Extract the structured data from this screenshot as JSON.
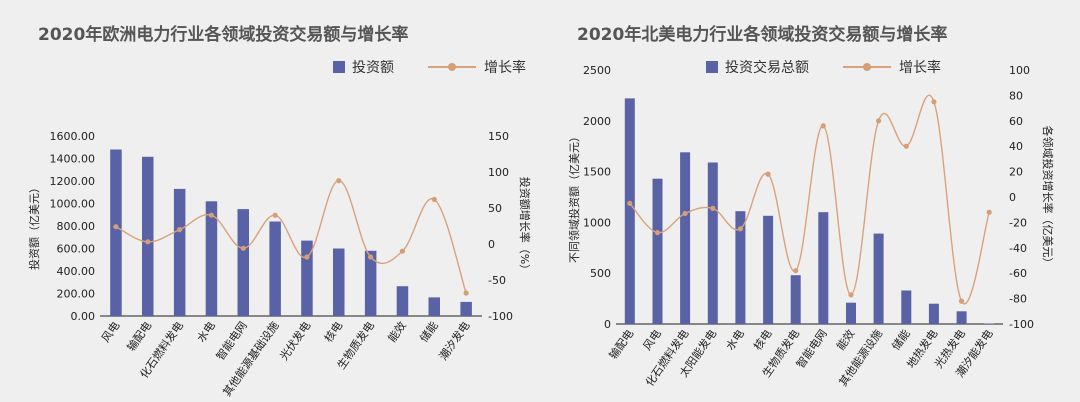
{
  "chart_data": [
    {
      "type": "bar",
      "title": "2020年欧洲电力行业各领域投资交易额与增长率",
      "categories": [
        "风电",
        "输配电",
        "化石燃料发电",
        "水电",
        "智能电网",
        "其他能源基础设施",
        "光伏发电",
        "核电",
        "生物质发电",
        "能效",
        "储能",
        "潮汐发电"
      ],
      "series": [
        {
          "name": "投资额",
          "axis": "left",
          "type": "bar",
          "values": [
            1480,
            1415,
            1130,
            1020,
            950,
            840,
            670,
            600,
            580,
            265,
            165,
            125
          ]
        },
        {
          "name": "增长率",
          "axis": "right",
          "type": "line",
          "values": [
            24,
            3,
            20,
            40,
            -6,
            40,
            -18,
            88,
            -18,
            -10,
            62,
            -68
          ]
        }
      ],
      "ylabel": "投资额（亿美元）",
      "ylabel_right": "投资额增长率（%）",
      "ylim": [
        0,
        1600
      ],
      "ylim_right": [
        -100,
        150
      ],
      "yticks": [
        "0.00",
        "200.00",
        "400.00",
        "600.00",
        "800.00",
        "1000.00",
        "1200.00",
        "1400.00",
        "1600.00"
      ],
      "yticks_right": [
        "-100",
        "-50",
        "0",
        "50",
        "100",
        "150"
      ],
      "legend_position": "top-right",
      "grid": false,
      "colors": {
        "bar": "#5a62a6",
        "line": "#d9a27c",
        "marker": "#d49e78"
      }
    },
    {
      "type": "bar",
      "title": "2020年北美电力行业各领域投资交易额与增长率",
      "categories": [
        "输配电",
        "风电",
        "化石燃料发电",
        "太阳能发电",
        "水电",
        "核电",
        "生物质发电",
        "智能电网",
        "能效",
        "其他能源设施",
        "储能",
        "地热发电",
        "光热发电",
        "潮汐能发电"
      ],
      "series": [
        {
          "name": "投资交易总额",
          "axis": "left",
          "type": "bar",
          "values": [
            2220,
            1430,
            1690,
            1590,
            1110,
            1065,
            480,
            1100,
            210,
            890,
            330,
            200,
            125,
            5
          ]
        },
        {
          "name": "增长率",
          "axis": "right",
          "type": "line",
          "values": [
            -5,
            -28,
            -13,
            -9,
            -25,
            18,
            -58,
            56,
            -77,
            60,
            40,
            75,
            -82,
            -12
          ]
        }
      ],
      "ylabel": "不同领域投资额（亿美元）",
      "ylabel_right": "各领域投资增长率（亿美元）",
      "ylim": [
        0,
        2500
      ],
      "ylim_right": [
        -100,
        100
      ],
      "yticks": [
        "0",
        "500",
        "1000",
        "1500",
        "2000",
        "2500"
      ],
      "yticks_right": [
        "-100",
        "-80",
        "-60",
        "-40",
        "-20",
        "0",
        "20",
        "40",
        "60",
        "80",
        "100"
      ],
      "legend_position": "top-right",
      "grid": false,
      "colors": {
        "bar": "#5a62a6",
        "line": "#d9a27c",
        "marker": "#d49e78"
      }
    }
  ]
}
